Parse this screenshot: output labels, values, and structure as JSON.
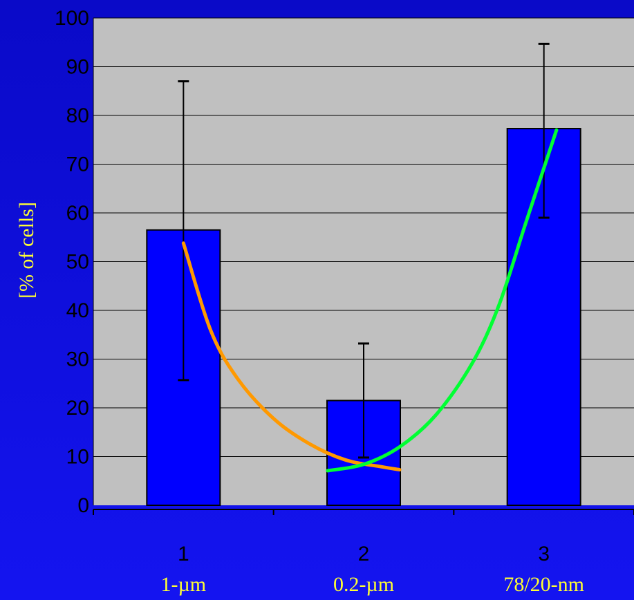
{
  "chart_data": {
    "type": "bar",
    "title": "",
    "xlabel": "",
    "ylabel": "[% of cells]",
    "ylim": [
      0,
      100
    ],
    "yticks": [
      0,
      10,
      20,
      30,
      40,
      50,
      60,
      70,
      80,
      90,
      100
    ],
    "grid": true,
    "categories": [
      "1",
      "2",
      "3"
    ],
    "category_names": [
      "1-µm",
      "0.2-µm",
      "78/20-nm"
    ],
    "values": [
      56.5,
      21.5,
      77.3
    ],
    "error_bars": [
      {
        "low": 25.7,
        "high": 87.0
      },
      {
        "low": 9.8,
        "high": 33.2
      },
      {
        "low": 59.0,
        "high": 94.7
      }
    ],
    "trend_curves": [
      {
        "color": "#ff9900",
        "points": [
          [
            1,
            53.8
          ],
          [
            1.15,
            36.0
          ],
          [
            1.3,
            26.0
          ],
          [
            1.5,
            17.8
          ],
          [
            1.7,
            12.6
          ],
          [
            1.9,
            9.3
          ],
          [
            2.1,
            7.9
          ],
          [
            2.2,
            7.3
          ]
        ]
      },
      {
        "color": "#00ff33",
        "points": [
          [
            1.8,
            7.1
          ],
          [
            2.0,
            8.4
          ],
          [
            2.2,
            12.0
          ],
          [
            2.4,
            18.5
          ],
          [
            2.6,
            29.0
          ],
          [
            2.75,
            41.0
          ],
          [
            2.9,
            58.0
          ],
          [
            3.07,
            77.0
          ]
        ]
      }
    ],
    "colors": {
      "background": "#1010e8",
      "plot_area": "#c0c0c0",
      "bar": "#0000ff",
      "gridline": "#000000",
      "axis_text": "#000000",
      "label_text": "#ffff33"
    }
  }
}
